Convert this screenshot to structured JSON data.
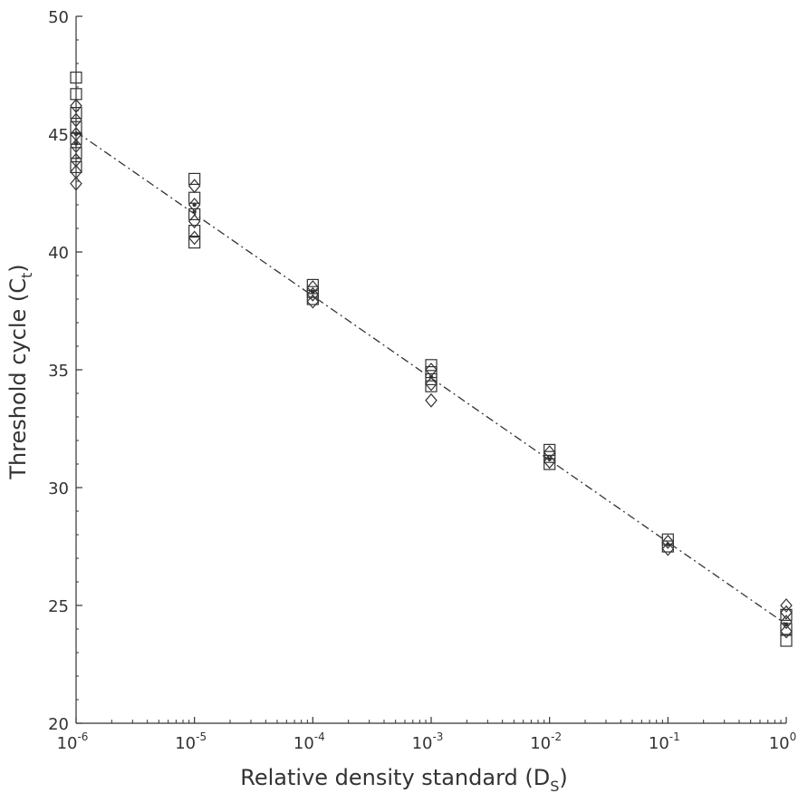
{
  "chart_data": {
    "type": "scatter",
    "title": "",
    "xlabel": "Relative density standard (D",
    "xlabel_sub": "S",
    "xlabel_close": ")",
    "ylabel": "Threshold cycle (C",
    "ylabel_sub": "t",
    "ylabel_close": ")",
    "x_scale": "log",
    "xlim": [
      1e-06,
      1
    ],
    "ylim": [
      20,
      50
    ],
    "x_ticks": [
      {
        "value": 1e-06,
        "base": "10",
        "exp": "-6"
      },
      {
        "value": 1e-05,
        "base": "10",
        "exp": "-5"
      },
      {
        "value": 0.0001,
        "base": "10",
        "exp": "-4"
      },
      {
        "value": 0.001,
        "base": "10",
        "exp": "-3"
      },
      {
        "value": 0.01,
        "base": "10",
        "exp": "-2"
      },
      {
        "value": 0.1,
        "base": "10",
        "exp": "-1"
      },
      {
        "value": 1,
        "base": "10",
        "exp": "0"
      }
    ],
    "y_ticks": [
      "20",
      "25",
      "30",
      "35",
      "40",
      "45",
      "50"
    ],
    "grid": false,
    "colors": {
      "marker": "#333333",
      "fit_line": "#333333",
      "axis": "#333333"
    },
    "series": [
      {
        "marker": "square",
        "points": [
          {
            "x": 1e-06,
            "y": 47.4
          },
          {
            "x": 1e-06,
            "y": 46.7
          },
          {
            "x": 1e-06,
            "y": 45.9
          },
          {
            "x": 1e-06,
            "y": 45.3
          },
          {
            "x": 1e-06,
            "y": 44.8
          },
          {
            "x": 1e-06,
            "y": 44.2
          },
          {
            "x": 1e-06,
            "y": 43.6
          },
          {
            "x": 1e-05,
            "y": 43.1
          },
          {
            "x": 1e-05,
            "y": 42.3
          },
          {
            "x": 1e-05,
            "y": 41.6
          },
          {
            "x": 1e-05,
            "y": 40.9
          },
          {
            "x": 1e-05,
            "y": 40.4
          },
          {
            "x": 0.0001,
            "y": 38.6
          },
          {
            "x": 0.0001,
            "y": 38.3
          },
          {
            "x": 0.0001,
            "y": 38.0
          },
          {
            "x": 0.001,
            "y": 35.2
          },
          {
            "x": 0.001,
            "y": 34.9
          },
          {
            "x": 0.001,
            "y": 34.6
          },
          {
            "x": 0.001,
            "y": 34.3
          },
          {
            "x": 0.01,
            "y": 31.6
          },
          {
            "x": 0.01,
            "y": 31.3
          },
          {
            "x": 0.01,
            "y": 31.0
          },
          {
            "x": 0.1,
            "y": 27.8
          },
          {
            "x": 0.1,
            "y": 27.5
          },
          {
            "x": 1,
            "y": 24.6
          },
          {
            "x": 1,
            "y": 24.0
          },
          {
            "x": 1,
            "y": 23.5
          }
        ]
      },
      {
        "marker": "diamond",
        "points": [
          {
            "x": 1e-06,
            "y": 46.2
          },
          {
            "x": 1e-06,
            "y": 45.6
          },
          {
            "x": 1e-06,
            "y": 45.0
          },
          {
            "x": 1e-06,
            "y": 44.5
          },
          {
            "x": 1e-06,
            "y": 43.9
          },
          {
            "x": 1e-06,
            "y": 43.4
          },
          {
            "x": 1e-06,
            "y": 42.9
          },
          {
            "x": 1e-05,
            "y": 42.8
          },
          {
            "x": 1e-05,
            "y": 42.0
          },
          {
            "x": 1e-05,
            "y": 41.3
          },
          {
            "x": 1e-05,
            "y": 40.6
          },
          {
            "x": 0.0001,
            "y": 38.5
          },
          {
            "x": 0.0001,
            "y": 38.2
          },
          {
            "x": 0.0001,
            "y": 37.9
          },
          {
            "x": 0.001,
            "y": 35.0
          },
          {
            "x": 0.001,
            "y": 34.4
          },
          {
            "x": 0.001,
            "y": 33.7
          },
          {
            "x": 0.01,
            "y": 31.5
          },
          {
            "x": 0.01,
            "y": 31.1
          },
          {
            "x": 0.1,
            "y": 27.7
          },
          {
            "x": 0.1,
            "y": 27.4
          },
          {
            "x": 1,
            "y": 25.0
          },
          {
            "x": 1,
            "y": 24.7
          },
          {
            "x": 1,
            "y": 24.3
          },
          {
            "x": 1,
            "y": 23.9
          }
        ]
      },
      {
        "marker": "dot",
        "points": [
          {
            "x": 1e-06,
            "y": 45.0
          },
          {
            "x": 1e-06,
            "y": 44.6
          },
          {
            "x": 1e-05,
            "y": 42.0
          },
          {
            "x": 1e-05,
            "y": 41.7
          },
          {
            "x": 0.0001,
            "y": 38.3
          },
          {
            "x": 0.001,
            "y": 34.7
          },
          {
            "x": 0.01,
            "y": 31.2
          },
          {
            "x": 0.1,
            "y": 27.6
          },
          {
            "x": 1,
            "y": 24.2
          }
        ]
      }
    ],
    "fit_line": {
      "style": "dash-dot",
      "x": [
        1e-06,
        1
      ],
      "y": [
        45.1,
        24.2
      ]
    }
  }
}
